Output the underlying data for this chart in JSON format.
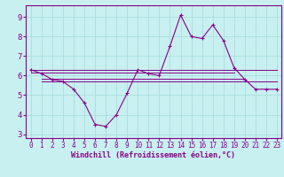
{
  "xlabel": "Windchill (Refroidissement éolien,°C)",
  "background_color": "#c8f0f0",
  "line_color": "#880088",
  "grid_color": "#aadddd",
  "xlim": [
    -0.5,
    23.4
  ],
  "ylim": [
    2.8,
    9.6
  ],
  "yticks": [
    3,
    4,
    5,
    6,
    7,
    8,
    9
  ],
  "xticks": [
    0,
    1,
    2,
    3,
    4,
    5,
    6,
    7,
    8,
    9,
    10,
    11,
    12,
    13,
    14,
    15,
    16,
    17,
    18,
    19,
    20,
    21,
    22,
    23
  ],
  "main_x": [
    0,
    1,
    2,
    3,
    4,
    5,
    6,
    7,
    8,
    9,
    10,
    11,
    12,
    13,
    14,
    15,
    16,
    17,
    18,
    19,
    20,
    21,
    22,
    23
  ],
  "main_y": [
    6.3,
    6.1,
    5.8,
    5.7,
    5.3,
    4.6,
    3.5,
    3.4,
    4.0,
    5.1,
    6.3,
    6.1,
    6.0,
    7.5,
    9.1,
    8.0,
    7.9,
    8.6,
    7.8,
    6.4,
    5.8,
    5.3,
    5.3,
    5.3
  ],
  "flat_lines": [
    {
      "x": [
        0,
        23
      ],
      "y": [
        6.3,
        6.3
      ]
    },
    {
      "x": [
        0,
        19
      ],
      "y": [
        6.15,
        6.15
      ]
    },
    {
      "x": [
        1,
        20
      ],
      "y": [
        5.85,
        5.85
      ]
    },
    {
      "x": [
        1,
        23
      ],
      "y": [
        5.7,
        5.7
      ]
    }
  ]
}
